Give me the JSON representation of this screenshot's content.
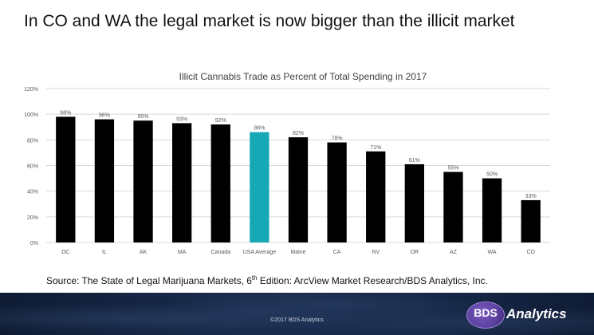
{
  "slide": {
    "title": "In CO and WA the legal market is now bigger than the illicit market",
    "source_prefix": "Source: The State of Legal Marijuana Markets, 6",
    "source_sup": "th",
    "source_suffix": " Edition: ArcView Market Research/BDS Analytics, Inc."
  },
  "footer": {
    "copyright": "©2017 BDS Analytics",
    "logo_bds": "BDS",
    "logo_word": "Analytics"
  },
  "chart_data": {
    "type": "bar",
    "title": "Illicit Cannabis Trade as Percent of Total Spending in 2017",
    "xlabel": "",
    "ylabel": "",
    "categories": [
      "DC",
      "IL",
      "AK",
      "MA",
      "Canada",
      "USA Average",
      "Maine",
      "CA",
      "NV",
      "OR",
      "AZ",
      "WA",
      "CO"
    ],
    "values": [
      98,
      96,
      95,
      93,
      92,
      86,
      82,
      78,
      71,
      61,
      55,
      50,
      33
    ],
    "data_labels": [
      "98%",
      "96%",
      "95%",
      "93%",
      "92%",
      "86%",
      "82%",
      "78%",
      "71%",
      "61%",
      "55%",
      "50%",
      "33%"
    ],
    "ylim": [
      0,
      120
    ],
    "yticks": [
      0,
      20,
      40,
      60,
      80,
      100,
      120
    ],
    "ytick_labels": [
      "0%",
      "20%",
      "40%",
      "60%",
      "80%",
      "100%",
      "120%"
    ],
    "grid": true,
    "legend": "none",
    "colors": {
      "default": "#000000",
      "highlight": "#17a8b5",
      "highlight_category": "USA Average",
      "grid": "#d9d9d9",
      "axis_text": "#595959"
    }
  }
}
